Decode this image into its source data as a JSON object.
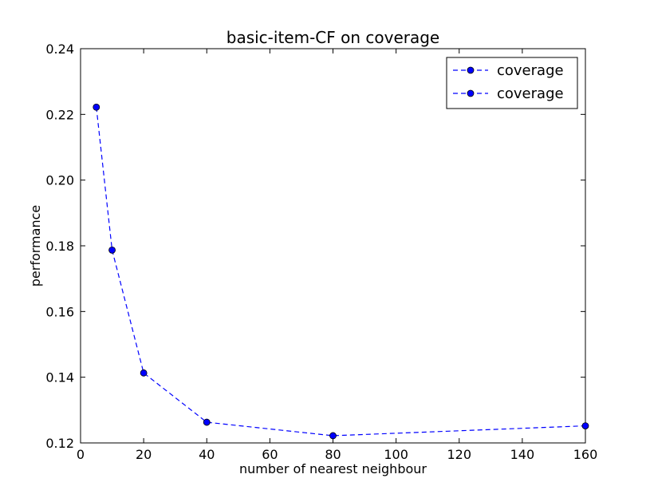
{
  "chart_data": {
    "type": "line",
    "title": "basic-item-CF on coverage",
    "xlabel": "number of nearest neighbour",
    "ylabel": "performance",
    "xlim": [
      0,
      160
    ],
    "ylim": [
      0.12,
      0.24
    ],
    "xticks": [
      0,
      20,
      40,
      60,
      80,
      100,
      120,
      140,
      160
    ],
    "yticks": [
      0.12,
      0.14,
      0.16,
      0.18,
      0.2,
      0.22,
      0.24
    ],
    "xtick_labels": [
      "0",
      "20",
      "40",
      "60",
      "80",
      "100",
      "120",
      "140",
      "160"
    ],
    "ytick_labels": [
      "0.12",
      "0.14",
      "0.16",
      "0.18",
      "0.20",
      "0.22",
      "0.24"
    ],
    "grid": false,
    "legend_position": "top-right",
    "legend": [
      "coverage",
      "coverage"
    ],
    "series": [
      {
        "name": "coverage",
        "color": "#0000ff",
        "line_style": "dashed",
        "marker": "circle",
        "x": [
          5,
          10,
          20,
          40,
          80,
          160
        ],
        "y": [
          0.2222,
          0.1787,
          0.1413,
          0.1263,
          0.1222,
          0.1252
        ]
      }
    ]
  }
}
